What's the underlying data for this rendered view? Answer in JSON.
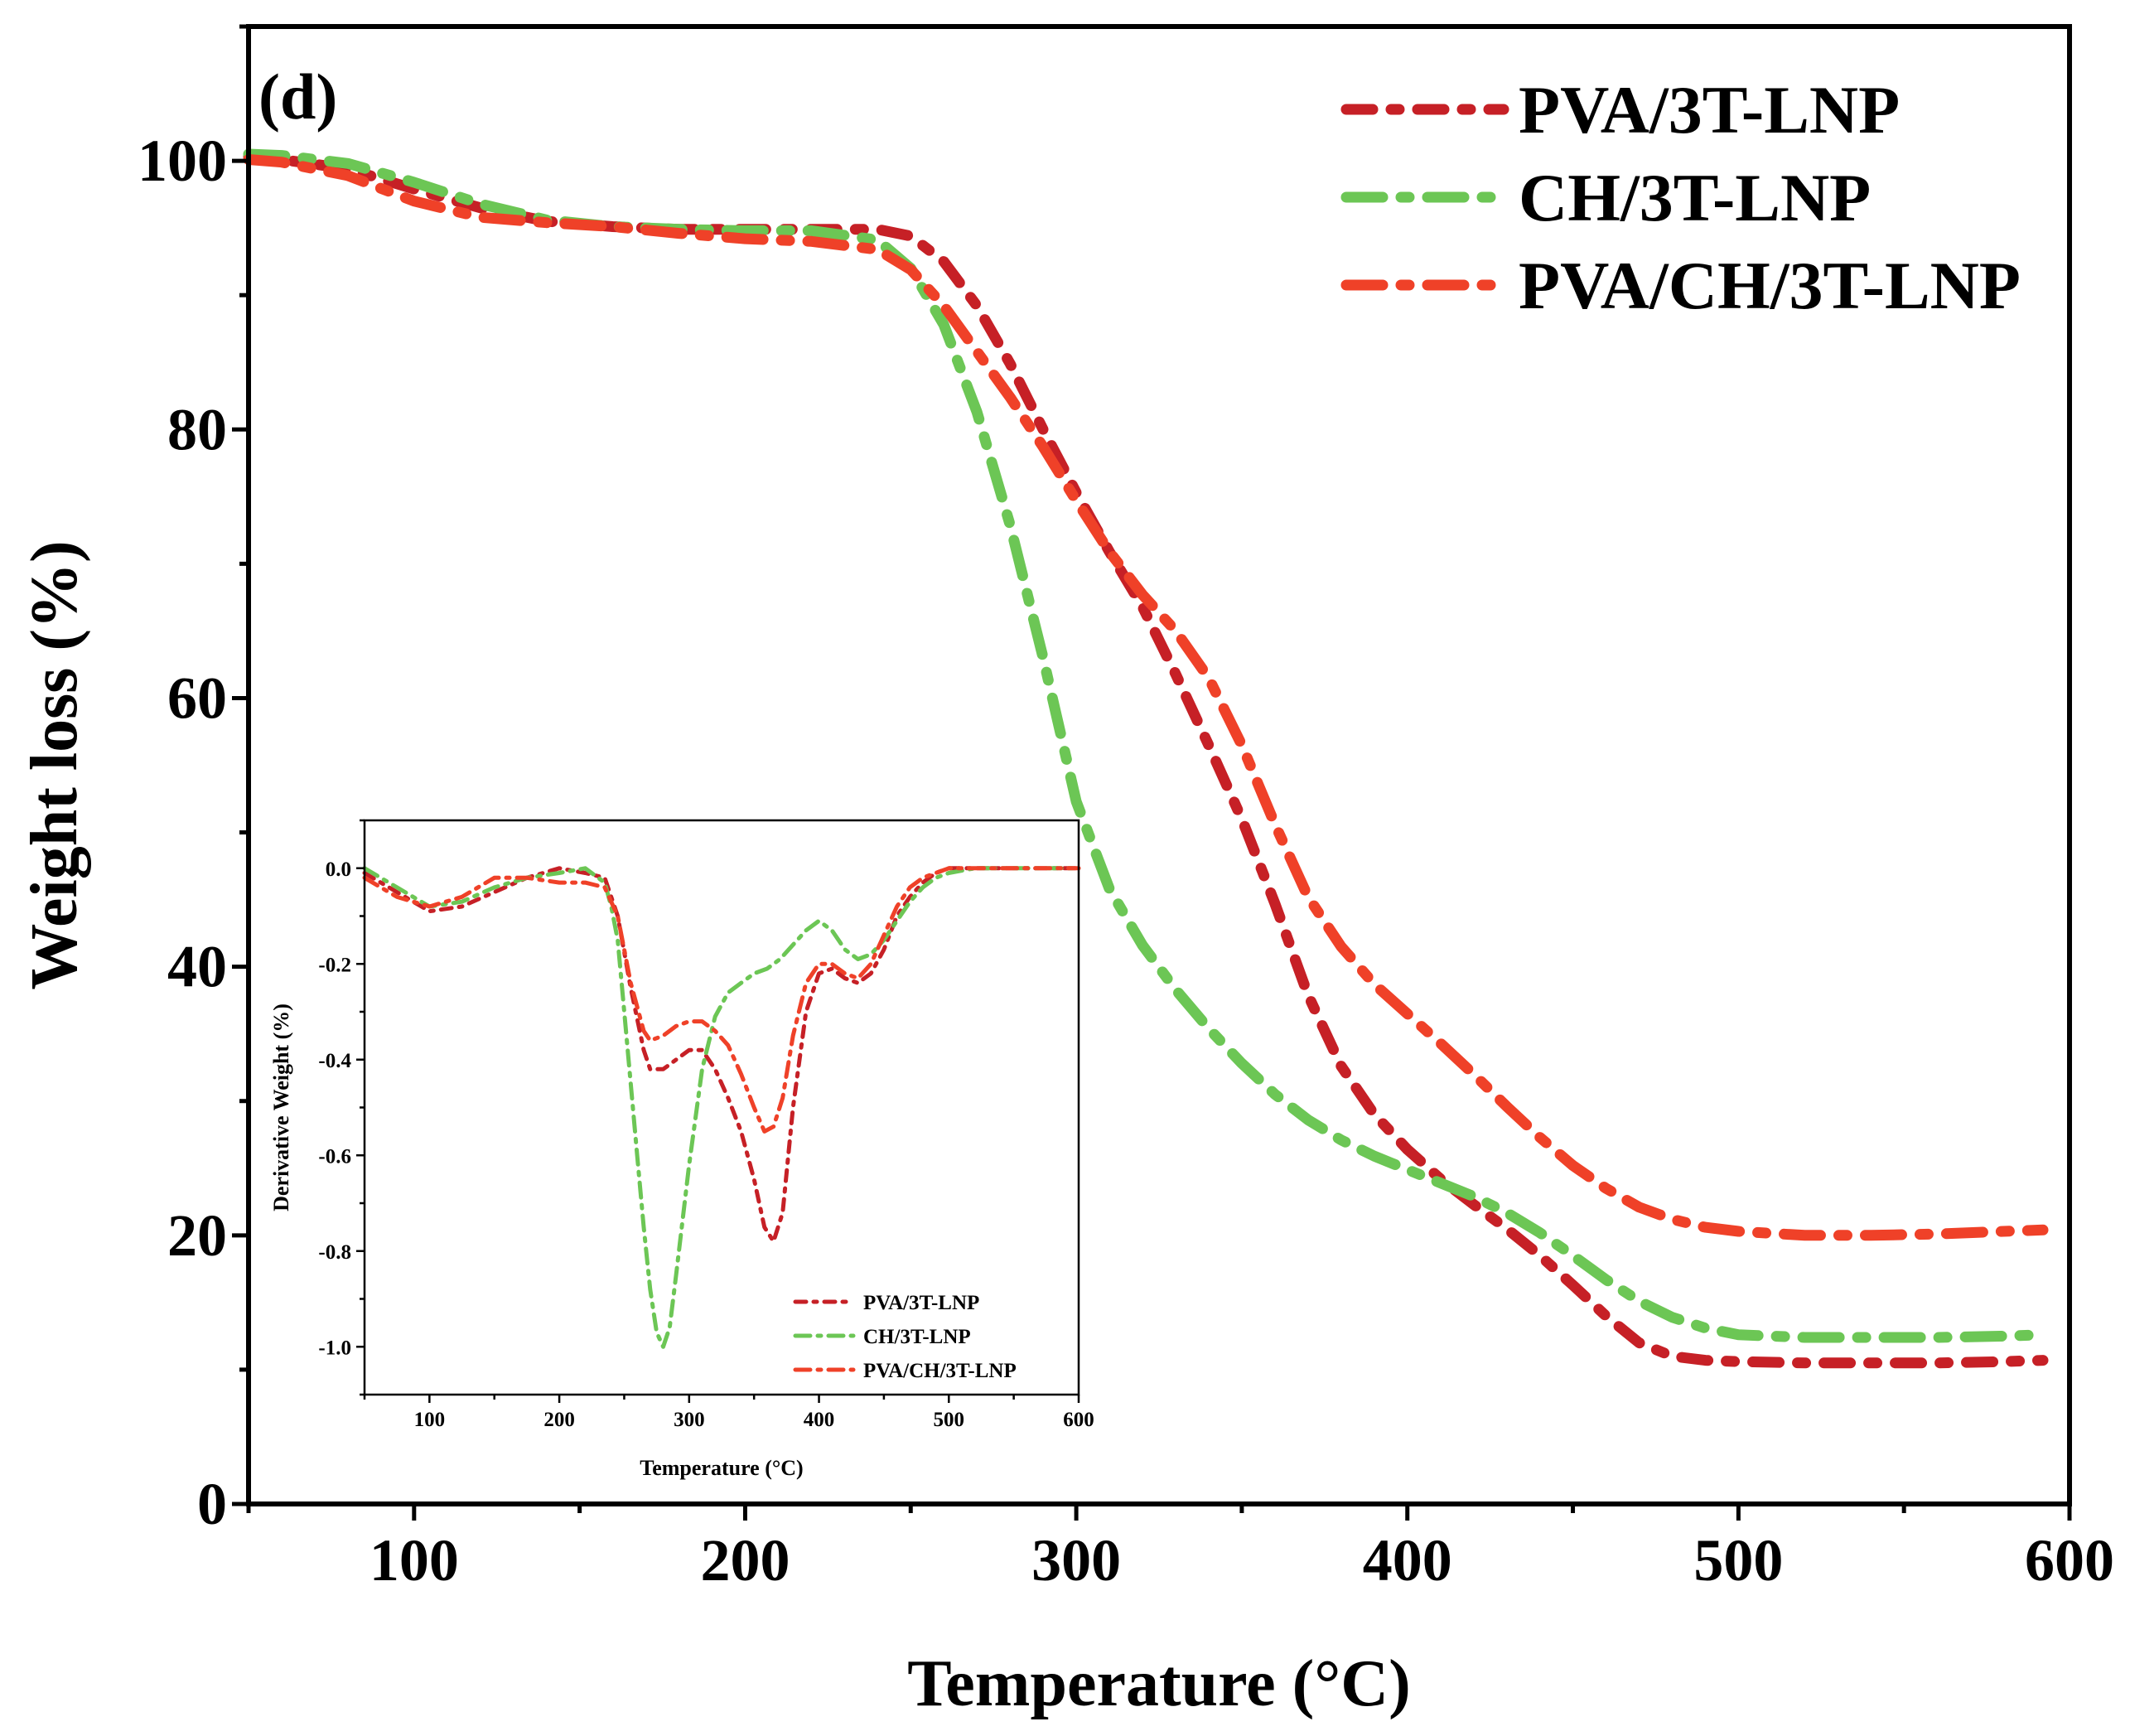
{
  "panel_label": "(d)",
  "series_meta": [
    {
      "name": "PVA/3T-LNP",
      "color": "#c62026"
    },
    {
      "name": "CH/3T-LNP",
      "color": "#6cc655"
    },
    {
      "name": "PVA/CH/3T-LNP",
      "color": "#ef4128"
    }
  ],
  "chart_data": [
    {
      "id": "main",
      "type": "line",
      "title": "",
      "xlabel": "Temperature (°C)",
      "ylabel": "Weight loss (%)",
      "xlim": [
        50,
        600
      ],
      "ylim": [
        0,
        110
      ],
      "xticks": [
        100,
        200,
        300,
        400,
        500,
        600
      ],
      "yticks": [
        0,
        20,
        40,
        60,
        80,
        100
      ],
      "legend": "top-right",
      "grid": false,
      "series": [
        {
          "name": "PVA/3T-LNP",
          "x": [
            50,
            60,
            80,
            100,
            120,
            140,
            160,
            180,
            200,
            220,
            240,
            250,
            260,
            270,
            280,
            290,
            300,
            310,
            320,
            330,
            340,
            350,
            360,
            370,
            380,
            390,
            400,
            410,
            420,
            430,
            440,
            450,
            460,
            470,
            480,
            490,
            500,
            520,
            540,
            560,
            580,
            592
          ],
          "y": [
            100.3,
            100.1,
            99.4,
            97.9,
            96.5,
            95.5,
            95.1,
            94.9,
            94.9,
            94.9,
            94.9,
            94.4,
            92.5,
            89.2,
            84.9,
            80.0,
            75.3,
            70.9,
            66.8,
            61.8,
            56.5,
            51.0,
            44.7,
            37.9,
            32.6,
            29.0,
            26.4,
            24.2,
            22.3,
            20.5,
            18.5,
            16.3,
            14.0,
            12.0,
            11.0,
            10.7,
            10.6,
            10.5,
            10.5,
            10.5,
            10.6,
            10.7
          ]
        },
        {
          "name": "CH/3T-LNP",
          "x": [
            50,
            60,
            80,
            100,
            120,
            140,
            160,
            180,
            200,
            220,
            240,
            250,
            260,
            270,
            280,
            290,
            300,
            310,
            320,
            330,
            340,
            350,
            360,
            370,
            380,
            390,
            400,
            410,
            420,
            430,
            440,
            450,
            460,
            470,
            480,
            490,
            500,
            520,
            540,
            560,
            580,
            592
          ],
          "y": [
            100.5,
            100.4,
            99.8,
            98.4,
            96.8,
            95.6,
            95.1,
            94.9,
            94.8,
            94.8,
            94.1,
            92.0,
            87.8,
            81.3,
            72.9,
            63.0,
            52.3,
            45.8,
            41.6,
            38.3,
            35.4,
            32.8,
            30.5,
            28.6,
            27.1,
            25.9,
            24.9,
            23.9,
            22.9,
            21.7,
            20.2,
            18.5,
            16.7,
            15.1,
            13.9,
            13.1,
            12.6,
            12.4,
            12.4,
            12.4,
            12.5,
            12.6
          ]
        },
        {
          "name": "PVA/CH/3T-LNP",
          "x": [
            50,
            60,
            80,
            100,
            120,
            140,
            160,
            180,
            200,
            220,
            240,
            250,
            260,
            270,
            280,
            290,
            300,
            310,
            320,
            330,
            340,
            350,
            360,
            370,
            380,
            390,
            400,
            410,
            420,
            430,
            440,
            450,
            460,
            470,
            480,
            490,
            500,
            520,
            540,
            560,
            580,
            592
          ],
          "y": [
            100.1,
            99.9,
            98.9,
            97.0,
            95.8,
            95.4,
            95.1,
            94.6,
            94.2,
            94.0,
            93.4,
            91.9,
            89.2,
            85.8,
            82.4,
            78.7,
            74.7,
            70.9,
            67.7,
            65.0,
            61.5,
            56.5,
            50.6,
            45.2,
            41.5,
            38.7,
            36.5,
            34.3,
            32.0,
            29.6,
            27.3,
            25.2,
            23.5,
            22.1,
            21.2,
            20.6,
            20.3,
            20.0,
            20.0,
            20.1,
            20.3,
            20.4
          ]
        }
      ]
    },
    {
      "id": "inset",
      "type": "line",
      "title": "",
      "xlabel": "Temperature (°C)",
      "ylabel": "Derivative Weight (%)",
      "xlim": [
        50,
        600
      ],
      "ylim": [
        -1.1,
        0.1
      ],
      "xticks": [
        100,
        200,
        300,
        400,
        500,
        600
      ],
      "yticks": [
        0.0,
        -0.2,
        -0.4,
        -0.6,
        -0.8,
        -1.0
      ],
      "ytick_labels": [
        "0.0",
        "-0.2",
        "-0.4",
        "-0.6",
        "-0.8",
        "-1.0"
      ],
      "legend": "bottom-right",
      "grid": false,
      "series": [
        {
          "name": "PVA/3T-LNP",
          "x": [
            50,
            75,
            100,
            125,
            150,
            175,
            200,
            220,
            235,
            245,
            255,
            265,
            270,
            280,
            290,
            300,
            310,
            320,
            330,
            340,
            350,
            358,
            365,
            372,
            380,
            390,
            400,
            410,
            420,
            430,
            440,
            450,
            460,
            470,
            480,
            490,
            500,
            520,
            540,
            560,
            580,
            600
          ],
          "y": [
            -0.01,
            -0.05,
            -0.09,
            -0.08,
            -0.05,
            -0.02,
            0.0,
            -0.01,
            -0.02,
            -0.1,
            -0.25,
            -0.38,
            -0.42,
            -0.42,
            -0.4,
            -0.38,
            -0.38,
            -0.42,
            -0.48,
            -0.55,
            -0.65,
            -0.75,
            -0.78,
            -0.72,
            -0.5,
            -0.3,
            -0.22,
            -0.21,
            -0.23,
            -0.24,
            -0.22,
            -0.17,
            -0.1,
            -0.06,
            -0.03,
            -0.01,
            0.0,
            0.0,
            0.0,
            0.0,
            0.0,
            0.0
          ]
        },
        {
          "name": "CH/3T-LNP",
          "x": [
            50,
            75,
            100,
            125,
            150,
            175,
            200,
            220,
            235,
            240,
            245,
            250,
            255,
            260,
            265,
            270,
            275,
            280,
            285,
            290,
            300,
            310,
            320,
            330,
            340,
            350,
            360,
            370,
            380,
            390,
            400,
            410,
            420,
            430,
            440,
            450,
            460,
            470,
            480,
            490,
            500,
            520,
            540,
            560,
            580,
            600
          ],
          "y": [
            0.0,
            -0.04,
            -0.08,
            -0.07,
            -0.04,
            -0.02,
            -0.01,
            0.0,
            -0.03,
            -0.08,
            -0.15,
            -0.3,
            -0.45,
            -0.6,
            -0.75,
            -0.88,
            -0.97,
            -1.0,
            -0.96,
            -0.85,
            -0.62,
            -0.42,
            -0.31,
            -0.26,
            -0.24,
            -0.22,
            -0.21,
            -0.19,
            -0.16,
            -0.13,
            -0.11,
            -0.13,
            -0.17,
            -0.19,
            -0.18,
            -0.15,
            -0.11,
            -0.07,
            -0.04,
            -0.02,
            -0.01,
            0.0,
            0.0,
            0.0,
            0.0,
            0.0
          ]
        },
        {
          "name": "PVA/CH/3T-LNP",
          "x": [
            50,
            75,
            100,
            125,
            150,
            175,
            200,
            220,
            235,
            245,
            255,
            265,
            270,
            280,
            290,
            300,
            310,
            320,
            330,
            340,
            350,
            358,
            365,
            372,
            380,
            390,
            400,
            410,
            420,
            430,
            440,
            450,
            460,
            470,
            480,
            490,
            500,
            520,
            540,
            560,
            580,
            600
          ],
          "y": [
            -0.02,
            -0.06,
            -0.08,
            -0.06,
            -0.02,
            -0.02,
            -0.03,
            -0.03,
            -0.04,
            -0.1,
            -0.24,
            -0.34,
            -0.36,
            -0.35,
            -0.33,
            -0.32,
            -0.32,
            -0.34,
            -0.37,
            -0.43,
            -0.5,
            -0.55,
            -0.54,
            -0.48,
            -0.35,
            -0.24,
            -0.2,
            -0.2,
            -0.22,
            -0.23,
            -0.2,
            -0.14,
            -0.08,
            -0.04,
            -0.02,
            -0.01,
            0.0,
            0.0,
            0.0,
            0.0,
            0.0,
            0.0
          ]
        }
      ]
    }
  ]
}
